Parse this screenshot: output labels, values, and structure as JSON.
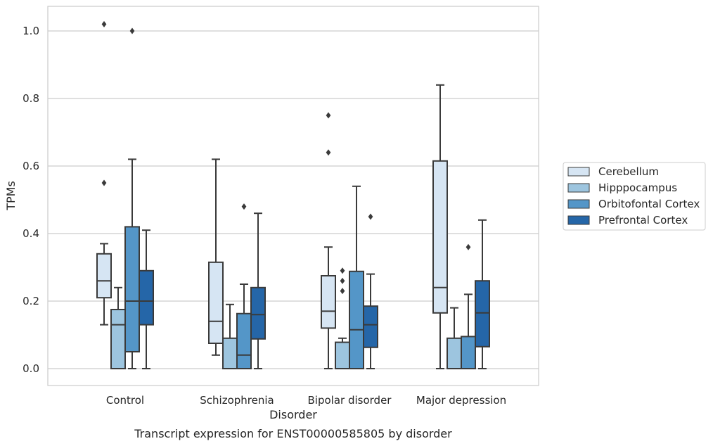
{
  "caption": "Transcript expression for ENST00000585805 by disorder",
  "chart_data": {
    "type": "box",
    "xlabel": "Disorder",
    "ylabel": "TPMs",
    "ylim": [
      -0.05,
      1.07
    ],
    "yticks": [
      0.0,
      0.2,
      0.4,
      0.6,
      0.8,
      1.0
    ],
    "ytick_labels": [
      "0.0",
      "0.2",
      "0.4",
      "0.6",
      "0.8",
      "1.0"
    ],
    "grid": "horizontal",
    "legend_position": "right-center",
    "categories": [
      "Control",
      "Schizophrenia",
      "Bipolar disorder",
      "Major depression"
    ],
    "series": [
      {
        "name": "Cerebellum",
        "color": "#d6e5f3",
        "boxes": [
          {
            "whisker_low": 0.13,
            "q1": 0.21,
            "median": 0.26,
            "q3": 0.34,
            "whisker_high": 0.37,
            "outliers": [
              0.55,
              1.02
            ]
          },
          {
            "whisker_low": 0.04,
            "q1": 0.075,
            "median": 0.14,
            "q3": 0.315,
            "whisker_high": 0.62,
            "outliers": []
          },
          {
            "whisker_low": 0.0,
            "q1": 0.12,
            "median": 0.17,
            "q3": 0.275,
            "whisker_high": 0.36,
            "outliers": [
              0.64,
              0.75
            ]
          },
          {
            "whisker_low": 0.0,
            "q1": 0.165,
            "median": 0.24,
            "q3": 0.615,
            "whisker_high": 0.84,
            "outliers": []
          }
        ]
      },
      {
        "name": "Hipppocampus",
        "color": "#9dc5df",
        "boxes": [
          {
            "whisker_low": 0.0,
            "q1": 0.0,
            "median": 0.13,
            "q3": 0.175,
            "whisker_high": 0.24,
            "outliers": []
          },
          {
            "whisker_low": 0.0,
            "q1": 0.0,
            "median": 0.0,
            "q3": 0.09,
            "whisker_high": 0.19,
            "outliers": []
          },
          {
            "whisker_low": 0.0,
            "q1": 0.0,
            "median": 0.0,
            "q3": 0.078,
            "whisker_high": 0.09,
            "outliers": [
              0.23,
              0.26,
              0.29
            ]
          },
          {
            "whisker_low": 0.0,
            "q1": 0.0,
            "median": 0.0,
            "q3": 0.09,
            "whisker_high": 0.18,
            "outliers": []
          }
        ]
      },
      {
        "name": "Orbitofontal Cortex",
        "color": "#5496c8",
        "boxes": [
          {
            "whisker_low": 0.0,
            "q1": 0.05,
            "median": 0.2,
            "q3": 0.42,
            "whisker_high": 0.62,
            "outliers": [
              1.0
            ]
          },
          {
            "whisker_low": 0.0,
            "q1": 0.0,
            "median": 0.04,
            "q3": 0.163,
            "whisker_high": 0.25,
            "outliers": [
              0.48
            ]
          },
          {
            "whisker_low": 0.0,
            "q1": 0.0,
            "median": 0.115,
            "q3": 0.288,
            "whisker_high": 0.54,
            "outliers": []
          },
          {
            "whisker_low": 0.0,
            "q1": 0.0,
            "median": 0.0,
            "q3": 0.095,
            "whisker_high": 0.22,
            "outliers": [
              0.36
            ]
          }
        ]
      },
      {
        "name": "Prefrontal Cortex",
        "color": "#2566a8",
        "boxes": [
          {
            "whisker_low": 0.0,
            "q1": 0.13,
            "median": 0.2,
            "q3": 0.29,
            "whisker_high": 0.41,
            "outliers": []
          },
          {
            "whisker_low": 0.0,
            "q1": 0.088,
            "median": 0.16,
            "q3": 0.24,
            "whisker_high": 0.46,
            "outliers": []
          },
          {
            "whisker_low": 0.0,
            "q1": 0.063,
            "median": 0.13,
            "q3": 0.185,
            "whisker_high": 0.28,
            "outliers": [
              0.45
            ]
          },
          {
            "whisker_low": 0.0,
            "q1": 0.065,
            "median": 0.165,
            "q3": 0.26,
            "whisker_high": 0.44,
            "outliers": []
          }
        ]
      }
    ]
  }
}
